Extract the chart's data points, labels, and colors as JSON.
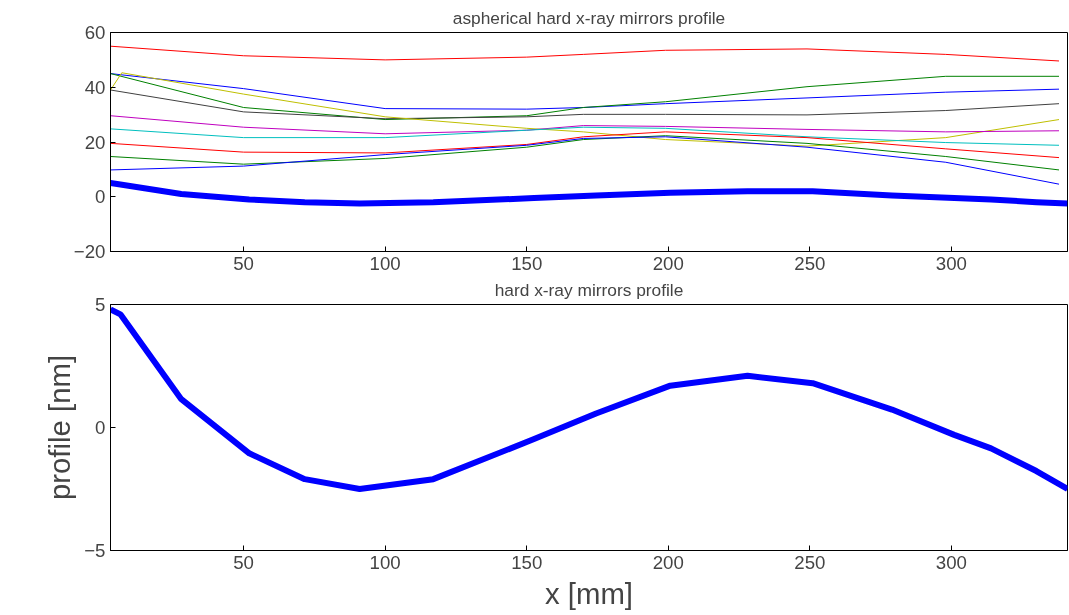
{
  "chart_data": [
    {
      "type": "line",
      "title": "aspherical hard x-ray mirrors profile",
      "x": [
        3,
        50,
        100,
        150,
        170,
        199,
        249,
        298,
        338
      ],
      "xlim": [
        3,
        341
      ],
      "ylim": [
        -20,
        60
      ],
      "xticks": [
        50,
        100,
        150,
        200,
        250,
        300
      ],
      "yticks": [
        {
          "value": -20,
          "label": "−20"
        },
        0,
        20,
        40,
        60
      ],
      "grid": false,
      "series": [
        {
          "color": "#ff0000",
          "values": [
            55,
            51.5,
            50,
            51,
            52,
            53.5,
            54,
            52,
            49.6
          ]
        },
        {
          "color": "#0000ff",
          "values": [
            45,
            39.5,
            32.2,
            32,
            32.6,
            34,
            36.1,
            38.2,
            39.3
          ]
        },
        {
          "color": "#008000",
          "values": [
            45,
            32.6,
            28.2,
            29.6,
            32.6,
            34.7,
            40.2,
            44,
            44
          ]
        },
        {
          "color": "#404040",
          "values": [
            39,
            31,
            28.5,
            29.2,
            30.1,
            30.1,
            29.9,
            31.5,
            34
          ]
        },
        {
          "color": "#bfbf00",
          "x": [
            3,
            7,
            50,
            100,
            150,
            170,
            199,
            249,
            298,
            338
          ],
          "values": [
            39,
            45.3,
            37.5,
            29.2,
            25,
            23.7,
            20.9,
            18.5,
            21.6,
            28.2
          ]
        },
        {
          "color": "#bf00bf",
          "values": [
            29.6,
            25.4,
            23,
            24.3,
            26,
            25.7,
            24.6,
            23.7,
            24.1
          ]
        },
        {
          "color": "#00bfbf",
          "values": [
            24.8,
            21.6,
            21.6,
            24.3,
            25.4,
            25,
            21.9,
            19.8,
            18.8
          ]
        },
        {
          "color": "#ff0000",
          "values": [
            19.5,
            16.3,
            16,
            19.1,
            21.9,
            23.7,
            21.6,
            17.5,
            14.3
          ]
        },
        {
          "color": "#008000",
          "values": [
            14.7,
            11.9,
            14,
            18.1,
            20.9,
            22.3,
            19.5,
            14.7,
            9.8
          ]
        },
        {
          "color": "#0000ff",
          "values": [
            9.8,
            11.2,
            15.4,
            18.8,
            21.3,
            21.9,
            18.1,
            12.6,
            4.6
          ]
        },
        {
          "color": "#0000ff",
          "x": [
            3,
            6.5,
            28,
            52,
            71.6,
            91,
            117,
            152.6,
            174.5,
            200.7,
            228,
            251,
            279,
            301,
            314,
            330,
            341
          ],
          "values": [
            5,
            4.5,
            1,
            -1,
            -2,
            -2.5,
            -2,
            -0.5,
            0.5,
            1.5,
            2,
            2,
            0.5,
            -0.5,
            -1,
            -2,
            -2.5
          ]
        }
      ]
    },
    {
      "type": "line",
      "title": "hard x-ray mirrors profile",
      "xlabel": "x [mm]",
      "ylabel": "profile [nm]",
      "x": [
        3,
        6.5,
        28,
        52,
        71.6,
        91,
        117,
        152.6,
        174.5,
        200.7,
        228,
        251,
        279,
        301,
        314,
        330,
        341
      ],
      "xlim": [
        3,
        341
      ],
      "ylim": [
        -5,
        5
      ],
      "xticks": [
        50,
        100,
        150,
        200,
        250,
        300
      ],
      "yticks": [
        {
          "value": -5,
          "label": "−5"
        },
        0,
        5
      ],
      "grid": false,
      "series": [
        {
          "color": "#0000ff",
          "values": [
            4.8,
            4.6,
            1.15,
            -1.05,
            -2.1,
            -2.5,
            -2.1,
            -0.47,
            0.57,
            1.7,
            2.1,
            1.8,
            0.73,
            -0.3,
            -0.85,
            -1.77,
            -2.5
          ]
        }
      ]
    }
  ]
}
